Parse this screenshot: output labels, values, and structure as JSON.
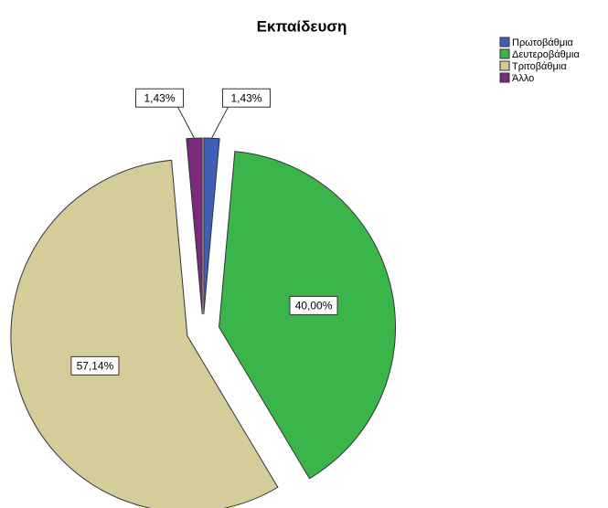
{
  "chart_data": {
    "type": "pie",
    "title": "Εκπαίδευση",
    "categories": [
      "Πρωτοβάθμια",
      "Δευτεροβάθμια",
      "Τριτοβάθμια",
      "Άλλο"
    ],
    "values": [
      1.43,
      40.0,
      57.14,
      1.43
    ],
    "value_labels": [
      "1,43%",
      "40,00%",
      "57,14%",
      "1,43%"
    ],
    "colors": [
      "#3f5fb5",
      "#3ab54a",
      "#d4cc99",
      "#7a2a7a"
    ],
    "legend": "top-right"
  }
}
